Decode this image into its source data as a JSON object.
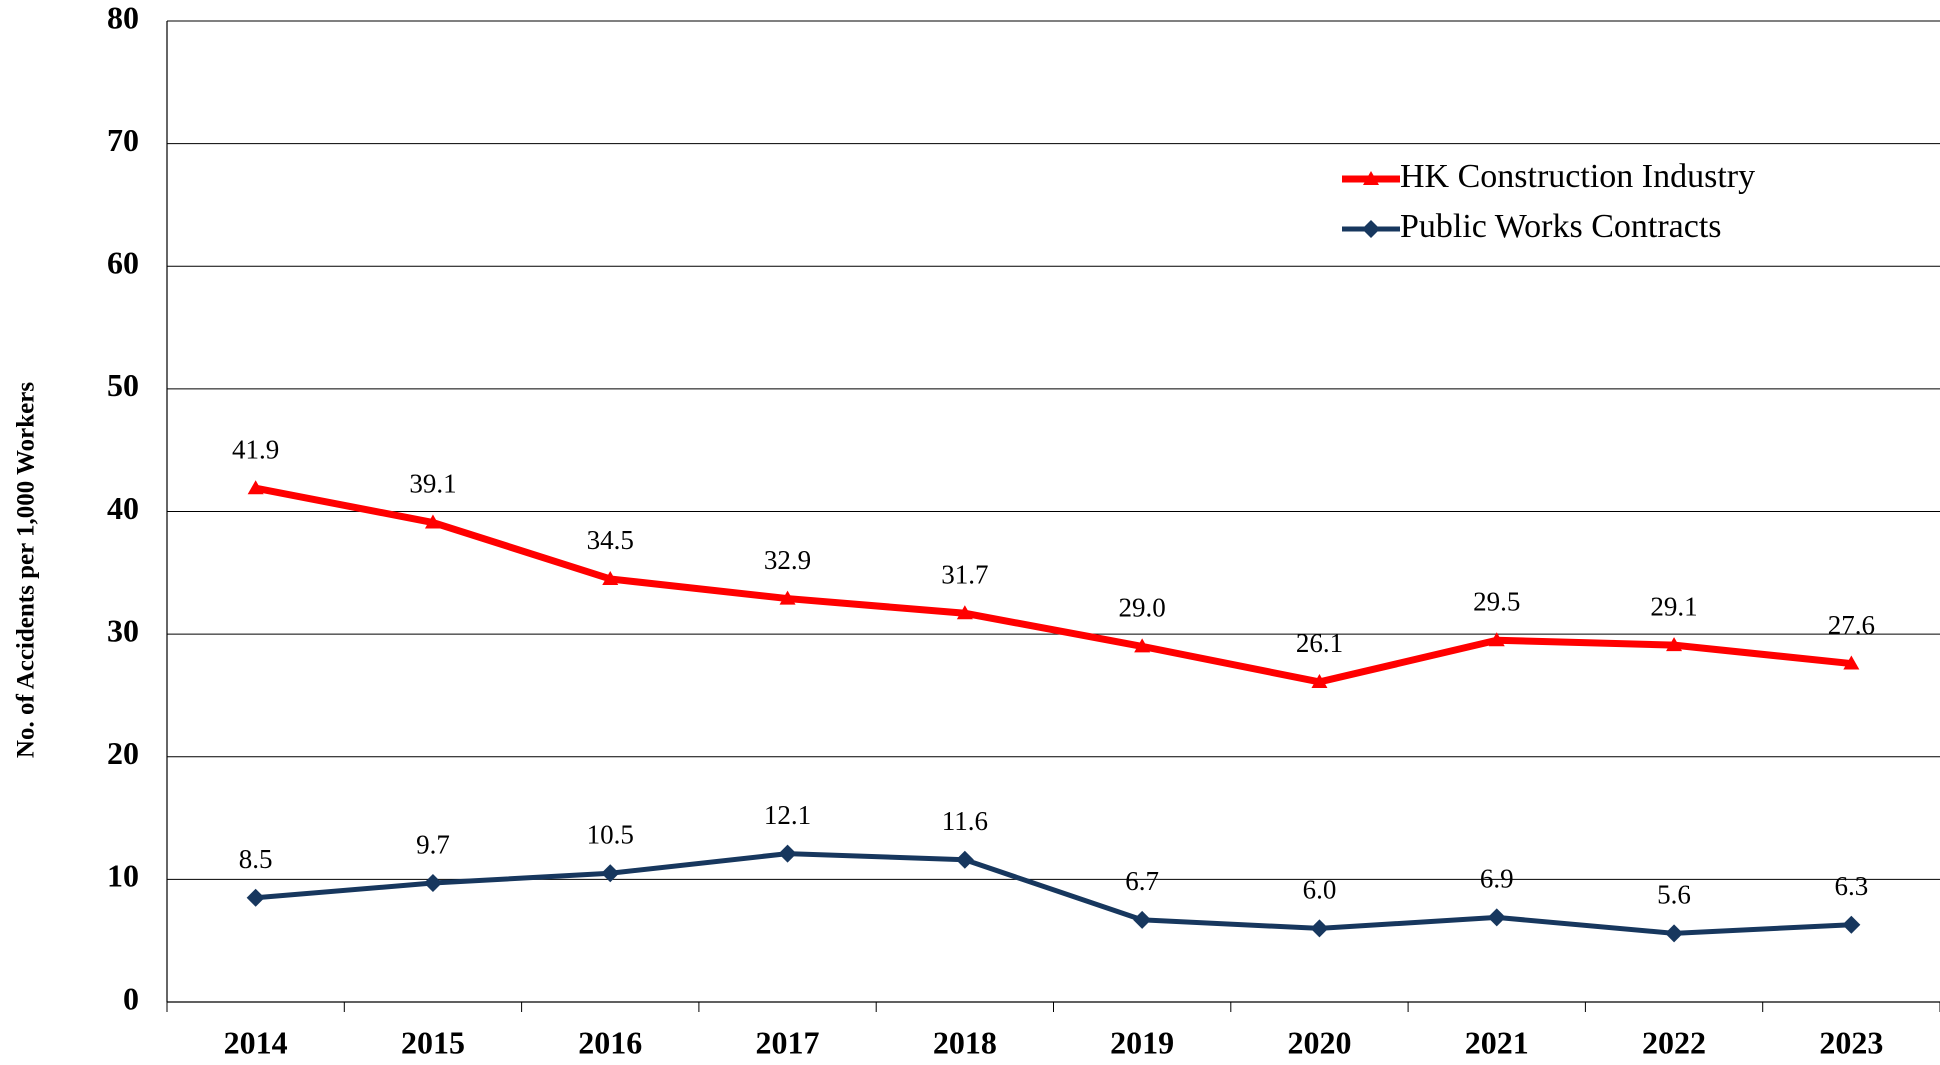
{
  "chart_data": {
    "type": "line",
    "y_label": "No. of Accidents per 1,000 Workers",
    "categories": [
      "2014",
      "2015",
      "2016",
      "2017",
      "2018",
      "2019",
      "2020",
      "2021",
      "2022",
      "2023"
    ],
    "series": [
      {
        "name": "HK Construction Industry",
        "color": "#ff0000",
        "marker": "triangle",
        "values": [
          41.9,
          39.1,
          34.5,
          32.9,
          31.7,
          29.0,
          26.1,
          29.5,
          29.1,
          27.6
        ],
        "value_labels": [
          "41.9",
          "39.1",
          "34.5",
          "32.9",
          "31.7",
          "29.0",
          "26.1",
          "29.5",
          "29.1",
          "27.6"
        ]
      },
      {
        "name": "Public Works Contracts",
        "color": "#17375e",
        "marker": "diamond",
        "values": [
          8.5,
          9.7,
          10.5,
          12.1,
          11.6,
          6.7,
          6.0,
          6.9,
          5.6,
          6.3
        ],
        "value_labels": [
          "8.5",
          "9.7",
          "10.5",
          "12.1",
          "11.6",
          "6.7",
          "6.0",
          "6.9",
          "5.6",
          "6.3"
        ]
      }
    ],
    "ylim": [
      0,
      80
    ],
    "yticks": [
      0,
      10,
      20,
      30,
      40,
      50,
      60,
      70,
      80
    ],
    "grid": true,
    "legend": "upper right"
  }
}
